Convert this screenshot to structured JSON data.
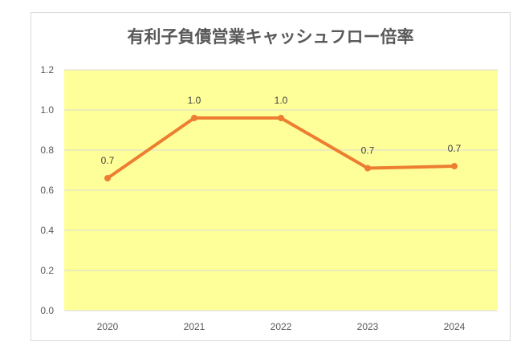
{
  "chart_data": {
    "type": "line",
    "title": "有利子負債営業キャッシュフロー倍率",
    "categories": [
      "2020",
      "2021",
      "2022",
      "2023",
      "2024"
    ],
    "series": [
      {
        "name": "有利子負債営業キャッシュフロー倍率",
        "values": [
          0.66,
          0.96,
          0.96,
          0.71,
          0.72
        ],
        "labels": [
          "0.7",
          "1.0",
          "1.0",
          "0.7",
          "0.7"
        ]
      }
    ],
    "yticks": [
      "0.0",
      "0.2",
      "0.4",
      "0.6",
      "0.8",
      "1.0",
      "1.2"
    ],
    "ylim": [
      0,
      1.2
    ],
    "xlabel": "",
    "ylabel": "",
    "grid": true,
    "legend": "none",
    "colors": {
      "line": "#ed7d31",
      "plot_bg": "#ffff99",
      "grid": "#d9d9d9"
    }
  }
}
